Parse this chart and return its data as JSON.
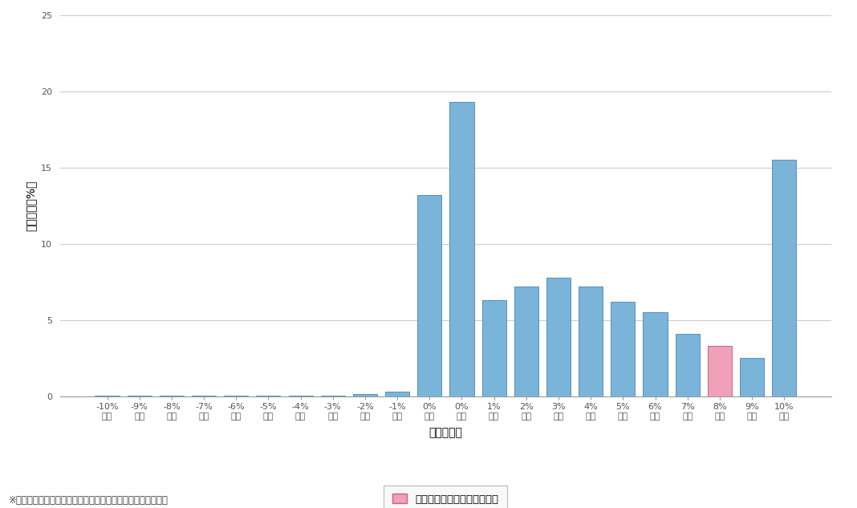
{
  "categories": [
    "-10%\n未満",
    "-9%\n未満",
    "-8%\n未満",
    "-7%\n未満",
    "-6%\n未満",
    "-5%\n未満",
    "-4%\n未満",
    "-3%\n未満",
    "-2%\n未満",
    "-1%\n未満",
    "0%\n未満",
    "0%\n以上",
    "1%\n以上",
    "2%\n以上",
    "3%\n以上",
    "4%\n以上",
    "5%\n以上",
    "6%\n以上",
    "7%\n以上",
    "8%\n以上",
    "9%\n以上",
    "10%\n以上"
  ],
  "values": [
    0.04,
    0.04,
    0.04,
    0.04,
    0.04,
    0.04,
    0.04,
    0.05,
    0.12,
    0.28,
    13.2,
    19.3,
    6.3,
    7.2,
    7.8,
    7.2,
    6.2,
    5.5,
    4.1,
    3.3,
    2.5,
    15.5
  ],
  "bar_colors": [
    "#7ab4d8",
    "#7ab4d8",
    "#7ab4d8",
    "#7ab4d8",
    "#7ab4d8",
    "#7ab4d8",
    "#7ab4d8",
    "#7ab4d8",
    "#7ab4d8",
    "#7ab4d8",
    "#7ab4d8",
    "#7ab4d8",
    "#7ab4d8",
    "#7ab4d8",
    "#7ab4d8",
    "#7ab4d8",
    "#7ab4d8",
    "#7ab4d8",
    "#7ab4d8",
    "#f0a0b8",
    "#7ab4d8",
    "#7ab4d8"
  ],
  "bar_edgecolors": [
    "#5590be",
    "#5590be",
    "#5590be",
    "#5590be",
    "#5590be",
    "#5590be",
    "#5590be",
    "#5590be",
    "#5590be",
    "#5590be",
    "#5590be",
    "#5590be",
    "#5590be",
    "#5590be",
    "#5590be",
    "#5590be",
    "#5590be",
    "#5590be",
    "#5590be",
    "#cc6080",
    "#5590be",
    "#5590be"
  ],
  "ylabel": "人数分布（%）",
  "xlabel": "運用利回り",
  "ylim": [
    0,
    25
  ],
  "yticks": [
    0,
    5,
    10,
    15,
    20,
    25
  ],
  "legend_label": "お客さまの運用利回りの位置",
  "legend_color": "#f0a0b8",
  "legend_edgecolor": "#cc6080",
  "note": "※　表示されている利回りは、初回入金来の運用利回りです。",
  "bg_color": "#ffffff",
  "grid_color": "#cccccc",
  "tick_fontsize": 8,
  "label_fontsize": 10
}
